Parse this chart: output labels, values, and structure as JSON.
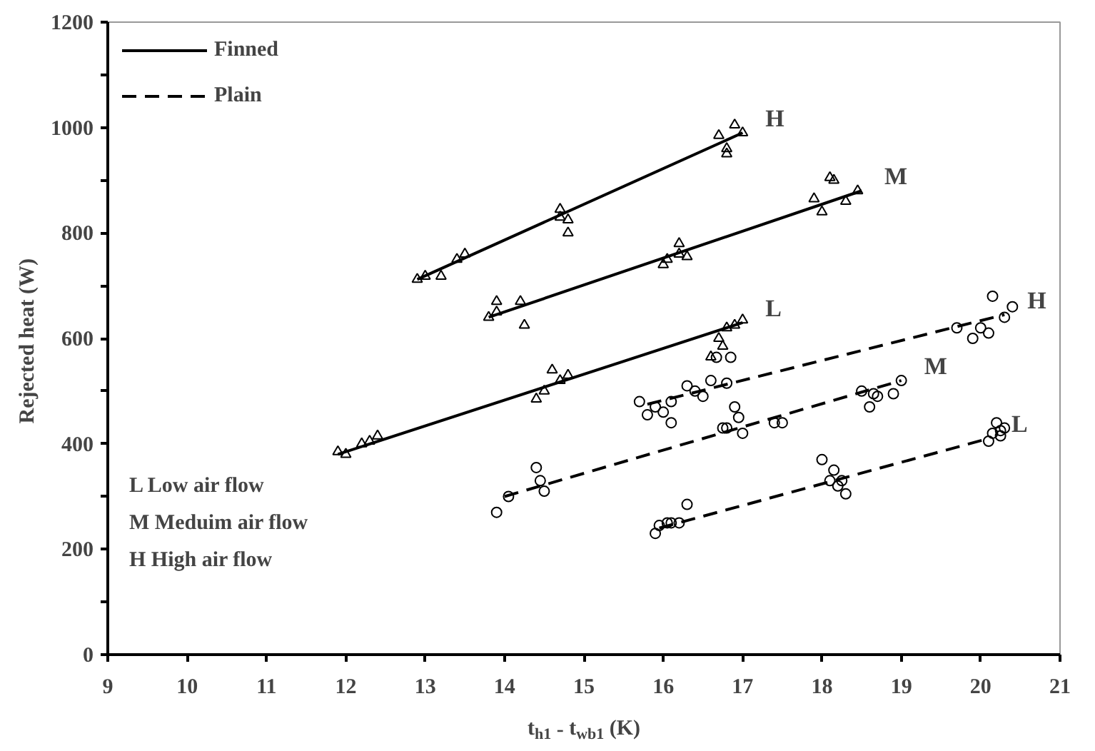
{
  "chart_data": {
    "type": "scatter",
    "xlabel": "t$_{h1}$ - t$_{wb1}$ (K)",
    "ylabel": "Rejected heat  (W)",
    "xlim": [
      9,
      21
    ],
    "ylim": [
      0,
      1200
    ],
    "xticks": [
      9,
      10,
      11,
      12,
      13,
      14,
      15,
      16,
      17,
      18,
      19,
      20,
      21
    ],
    "yticks": [
      0,
      {
        "value": 100,
        "label": null
      },
      200,
      {
        "value": 300,
        "label": null
      },
      400,
      {
        "value": 500,
        "label": null
      },
      600,
      {
        "value": 700,
        "label": null
      },
      800,
      {
        "value": 900,
        "label": null
      },
      1000,
      {
        "value": 1100,
        "label": null
      },
      1200
    ],
    "grid": false,
    "legend": "top left",
    "series": [
      {
        "name": "Finned",
        "type": "line",
        "line_style": "solid",
        "color": "#000000",
        "x": [
          12.9,
          17.0
        ],
        "values": [
          712,
          990
        ]
      },
      {
        "type": "line",
        "line_style": "solid",
        "color": "#000000",
        "x": [
          13.8,
          18.5
        ],
        "values": [
          640,
          880
        ]
      },
      {
        "type": "line",
        "line_style": "solid",
        "color": "#000000",
        "x": [
          11.9,
          17.0
        ],
        "values": [
          380,
          630
        ]
      },
      {
        "name": "Plain",
        "type": "line",
        "line_style": "dashed",
        "color": "#000000",
        "x": [
          15.8,
          20.3
        ],
        "values": [
          475,
          645
        ]
      },
      {
        "type": "line",
        "line_style": "dashed",
        "color": "#000000",
        "x": [
          14.0,
          19.0
        ],
        "values": [
          300,
          520
        ]
      },
      {
        "type": "line",
        "line_style": "dashed",
        "color": "#000000",
        "x": [
          15.95,
          20.1
        ],
        "values": [
          240,
          410
        ]
      },
      {
        "marker": "triangle",
        "color": "#000000",
        "x": [
          12.9,
          13.0,
          13.2,
          13.4,
          13.5,
          14.7,
          14.7,
          14.8,
          14.8,
          16.7,
          16.8,
          16.8,
          16.9,
          17.0,
          13.8,
          13.9,
          13.9,
          14.2,
          14.25,
          16.0,
          16.05,
          16.2,
          16.2,
          16.3,
          17.9,
          18.0,
          18.1,
          18.15,
          18.3,
          18.45,
          11.9,
          12.0,
          12.2,
          12.3,
          12.4,
          14.4,
          14.5,
          14.6,
          14.7,
          14.8,
          16.6,
          16.7,
          16.75,
          16.8,
          16.9,
          17.0
        ],
        "values": [
          712,
          718,
          718,
          750,
          760,
          845,
          830,
          825,
          800,
          985,
          960,
          950,
          1005,
          990,
          640,
          650,
          670,
          670,
          625,
          740,
          750,
          780,
          760,
          755,
          865,
          840,
          905,
          900,
          860,
          880,
          385,
          380,
          400,
          405,
          415,
          485,
          500,
          540,
          520,
          530,
          565,
          600,
          585,
          620,
          625,
          635
        ]
      },
      {
        "marker": "circle",
        "color": "#000000",
        "x": [
          15.7,
          15.8,
          15.9,
          16.0,
          16.1,
          16.1,
          16.3,
          16.4,
          16.5,
          16.6,
          16.8,
          16.67,
          16.85,
          19.7,
          19.9,
          20.0,
          20.1,
          20.15,
          20.3,
          20.4,
          13.9,
          14.05,
          14.4,
          14.45,
          14.5,
          16.75,
          16.8,
          16.9,
          16.95,
          17.0,
          17.4,
          17.5,
          18.5,
          18.6,
          18.65,
          18.7,
          18.9,
          19.0,
          15.9,
          15.95,
          16.05,
          16.1,
          16.2,
          16.3,
          18.0,
          18.1,
          18.15,
          18.2,
          18.25,
          18.3,
          20.1,
          20.15,
          20.2,
          20.25,
          20.3,
          20.25
        ],
        "values": [
          480,
          455,
          470,
          460,
          440,
          480,
          510,
          500,
          490,
          520,
          515,
          564,
          564,
          620,
          600,
          620,
          610,
          680,
          640,
          660,
          270,
          300,
          355,
          330,
          310,
          430,
          430,
          470,
          450,
          420,
          440,
          440,
          500,
          470,
          495,
          490,
          495,
          520,
          230,
          245,
          250,
          250,
          250,
          285,
          370,
          330,
          350,
          320,
          330,
          305,
          405,
          420,
          440,
          425,
          430,
          415
        ]
      }
    ],
    "annotations": [
      "H",
      "M",
      "L",
      "H",
      "M",
      "L",
      "L   Low air flow",
      "M  Meduim air flow",
      "H   High  air flow"
    ]
  }
}
